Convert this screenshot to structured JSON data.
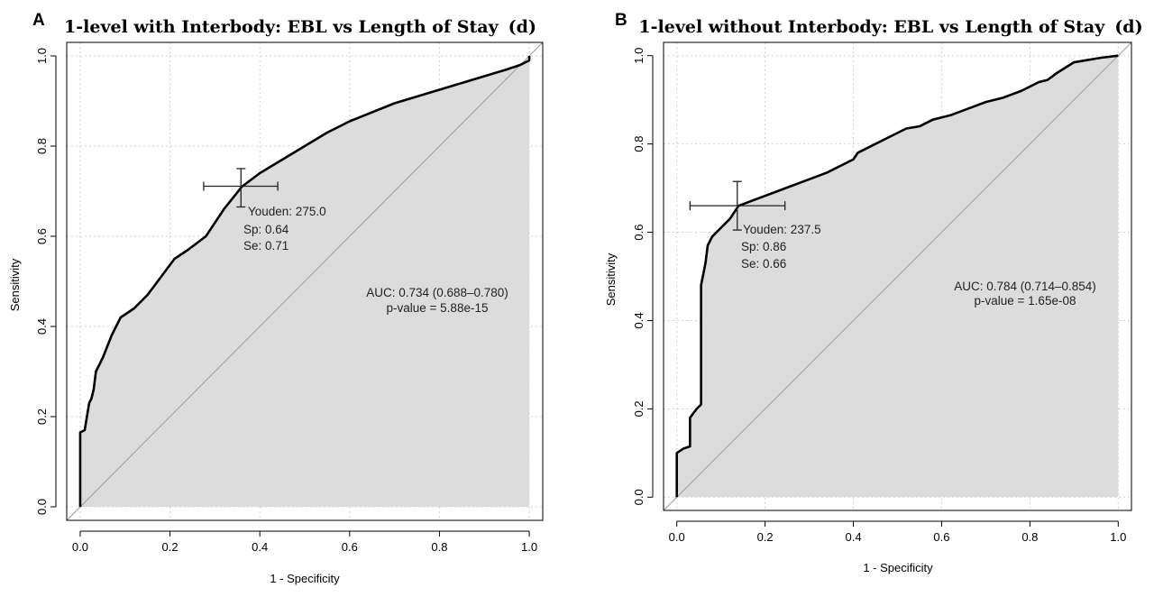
{
  "chart_data": [
    {
      "type": "line",
      "panel_letter": "A",
      "title": {
        "main": "1-level with Interbody: EBL vs Length of Stay",
        "suffix": "(d)"
      },
      "xlabel": "1 - Specificity",
      "ylabel": "Sensitivity",
      "xlim": [
        -0.03,
        1.03
      ],
      "ylim": [
        -0.03,
        1.03
      ],
      "x_ticks": [
        "0.0",
        "0.2",
        "0.4",
        "0.6",
        "0.8",
        "1.0"
      ],
      "y_ticks": [
        "0.0",
        "0.2",
        "0.4",
        "0.6",
        "0.8",
        "1.0"
      ],
      "grid": true,
      "series": [
        {
          "points": [
            [
              0,
              0
            ],
            [
              0,
              0.165
            ],
            [
              0.01,
              0.17
            ],
            [
              0.015,
              0.2
            ],
            [
              0.02,
              0.23
            ],
            [
              0.025,
              0.24
            ],
            [
              0.03,
              0.26
            ],
            [
              0.035,
              0.3
            ],
            [
              0.05,
              0.33
            ],
            [
              0.07,
              0.38
            ],
            [
              0.09,
              0.42
            ],
            [
              0.12,
              0.44
            ],
            [
              0.15,
              0.47
            ],
            [
              0.18,
              0.51
            ],
            [
              0.21,
              0.55
            ],
            [
              0.24,
              0.57
            ],
            [
              0.28,
              0.6
            ],
            [
              0.32,
              0.66
            ],
            [
              0.36,
              0.71
            ],
            [
              0.4,
              0.74
            ],
            [
              0.45,
              0.77
            ],
            [
              0.5,
              0.8
            ],
            [
              0.55,
              0.83
            ],
            [
              0.6,
              0.855
            ],
            [
              0.65,
              0.875
            ],
            [
              0.7,
              0.895
            ],
            [
              0.75,
              0.91
            ],
            [
              0.8,
              0.925
            ],
            [
              0.85,
              0.94
            ],
            [
              0.9,
              0.955
            ],
            [
              0.95,
              0.97
            ],
            [
              0.98,
              0.98
            ],
            [
              1,
              0.99
            ],
            [
              1,
              1
            ]
          ]
        }
      ],
      "threshold_point": {
        "x": 0.358,
        "y": 0.711,
        "x_ci": [
          0.275,
          0.44
        ],
        "y_ci": [
          0.665,
          0.75
        ],
        "labels": [
          "Youden: 275.0",
          "Sp: 0.64",
          "Se: 0.71"
        ]
      },
      "annotation": {
        "auc": "AUC: 0.734 (0.688–0.780)",
        "pvalue": "p-value = 5.88e-15"
      }
    },
    {
      "type": "line",
      "panel_letter": "B",
      "title": {
        "main": "1-level without Interbody: EBL vs Length of Stay",
        "suffix": "(d)"
      },
      "xlabel": "1 - Specificity",
      "ylabel": "Sensitivity",
      "xlim": [
        -0.03,
        1.03
      ],
      "ylim": [
        -0.03,
        1.03
      ],
      "x_ticks": [
        "0.0",
        "0.2",
        "0.4",
        "0.6",
        "0.8",
        "1.0"
      ],
      "y_ticks": [
        "0.0",
        "0.2",
        "0.4",
        "0.6",
        "0.8",
        "1.0"
      ],
      "grid": true,
      "series": [
        {
          "points": [
            [
              0,
              0
            ],
            [
              0,
              0.1
            ],
            [
              0.015,
              0.11
            ],
            [
              0.03,
              0.115
            ],
            [
              0.03,
              0.18
            ],
            [
              0.045,
              0.2
            ],
            [
              0.055,
              0.21
            ],
            [
              0.055,
              0.48
            ],
            [
              0.065,
              0.53
            ],
            [
              0.07,
              0.57
            ],
            [
              0.08,
              0.59
            ],
            [
              0.1,
              0.61
            ],
            [
              0.12,
              0.63
            ],
            [
              0.14,
              0.66
            ],
            [
              0.18,
              0.675
            ],
            [
              0.22,
              0.69
            ],
            [
              0.26,
              0.705
            ],
            [
              0.3,
              0.72
            ],
            [
              0.34,
              0.735
            ],
            [
              0.38,
              0.755
            ],
            [
              0.4,
              0.765
            ],
            [
              0.41,
              0.78
            ],
            [
              0.44,
              0.795
            ],
            [
              0.48,
              0.815
            ],
            [
              0.52,
              0.835
            ],
            [
              0.55,
              0.84
            ],
            [
              0.58,
              0.855
            ],
            [
              0.62,
              0.865
            ],
            [
              0.66,
              0.88
            ],
            [
              0.7,
              0.895
            ],
            [
              0.74,
              0.905
            ],
            [
              0.78,
              0.92
            ],
            [
              0.82,
              0.94
            ],
            [
              0.84,
              0.945
            ],
            [
              0.86,
              0.96
            ],
            [
              0.9,
              0.985
            ],
            [
              0.96,
              0.995
            ],
            [
              1,
              1
            ]
          ]
        }
      ],
      "threshold_point": {
        "x": 0.137,
        "y": 0.66,
        "x_ci": [
          0.03,
          0.245
        ],
        "y_ci": [
          0.605,
          0.715
        ],
        "labels": [
          "Youden: 237.5",
          "Sp: 0.86",
          "Se: 0.66"
        ]
      },
      "annotation": {
        "auc": "AUC: 0.784 (0.714–0.854)",
        "pvalue": "p-value = 1.65e-08"
      }
    }
  ]
}
